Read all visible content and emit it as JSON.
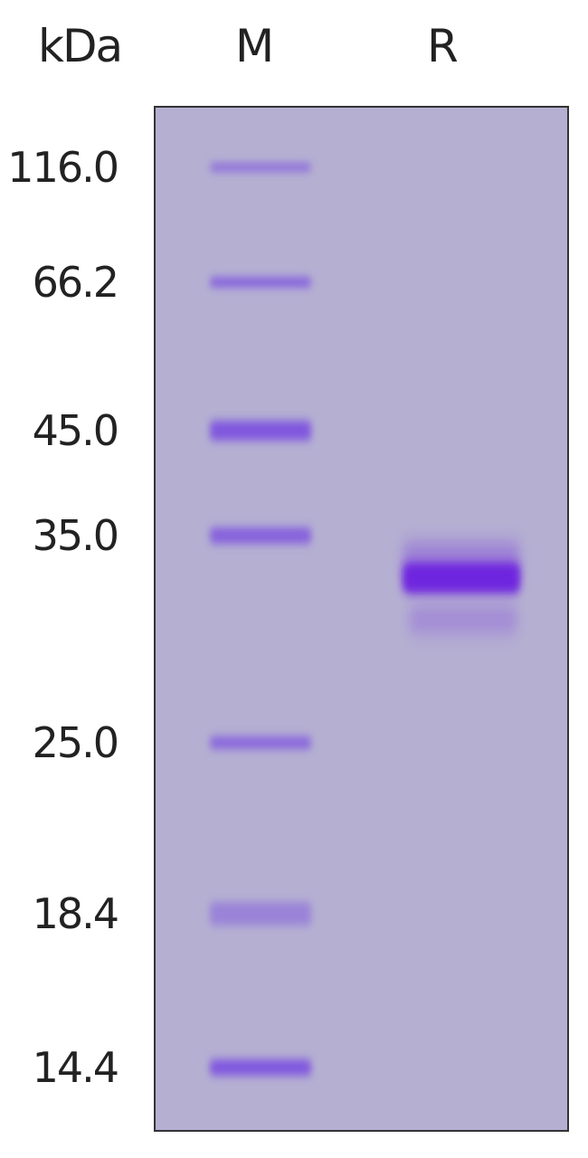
{
  "headers": {
    "unit": "kDa",
    "marker_lane": "M",
    "sample_lane": "R"
  },
  "markers": [
    "116.0",
    "66.2",
    "45.0",
    "35.0",
    "25.0",
    "18.4",
    "14.4"
  ],
  "colors": {
    "gel": "#b5b0d2",
    "marker_band": "#7a4de0",
    "sample_band": "#6a1ee0",
    "border": "#333333"
  }
}
